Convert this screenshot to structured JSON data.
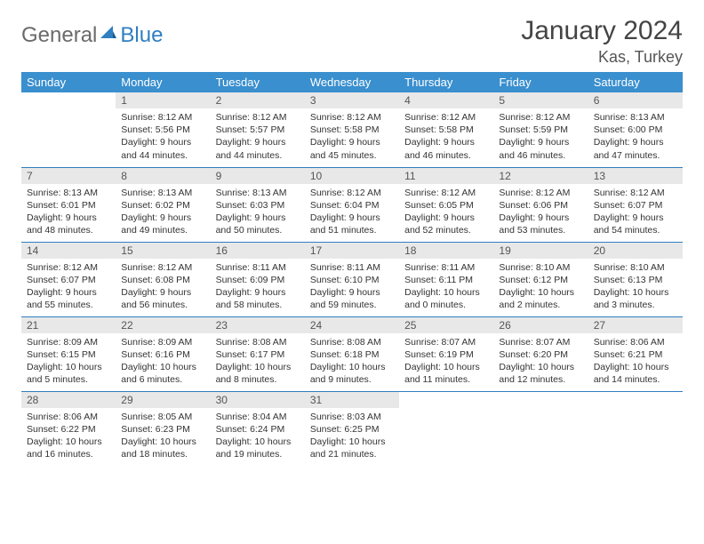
{
  "brand": {
    "part1": "General",
    "part2": "Blue"
  },
  "title": "January 2024",
  "location": "Kas, Turkey",
  "colors": {
    "header_bg": "#3a8fce",
    "row_divider": "#2f7fc2",
    "daynum_bg": "#e8e8e8",
    "logo_gray": "#6a6a6a",
    "logo_blue": "#2f7fc2"
  },
  "weekdays": [
    "Sunday",
    "Monday",
    "Tuesday",
    "Wednesday",
    "Thursday",
    "Friday",
    "Saturday"
  ],
  "weeks": [
    [
      null,
      {
        "n": "1",
        "sr": "8:12 AM",
        "ss": "5:56 PM",
        "dl": "9 hours and 44 minutes."
      },
      {
        "n": "2",
        "sr": "8:12 AM",
        "ss": "5:57 PM",
        "dl": "9 hours and 44 minutes."
      },
      {
        "n": "3",
        "sr": "8:12 AM",
        "ss": "5:58 PM",
        "dl": "9 hours and 45 minutes."
      },
      {
        "n": "4",
        "sr": "8:12 AM",
        "ss": "5:58 PM",
        "dl": "9 hours and 46 minutes."
      },
      {
        "n": "5",
        "sr": "8:12 AM",
        "ss": "5:59 PM",
        "dl": "9 hours and 46 minutes."
      },
      {
        "n": "6",
        "sr": "8:13 AM",
        "ss": "6:00 PM",
        "dl": "9 hours and 47 minutes."
      }
    ],
    [
      {
        "n": "7",
        "sr": "8:13 AM",
        "ss": "6:01 PM",
        "dl": "9 hours and 48 minutes."
      },
      {
        "n": "8",
        "sr": "8:13 AM",
        "ss": "6:02 PM",
        "dl": "9 hours and 49 minutes."
      },
      {
        "n": "9",
        "sr": "8:13 AM",
        "ss": "6:03 PM",
        "dl": "9 hours and 50 minutes."
      },
      {
        "n": "10",
        "sr": "8:12 AM",
        "ss": "6:04 PM",
        "dl": "9 hours and 51 minutes."
      },
      {
        "n": "11",
        "sr": "8:12 AM",
        "ss": "6:05 PM",
        "dl": "9 hours and 52 minutes."
      },
      {
        "n": "12",
        "sr": "8:12 AM",
        "ss": "6:06 PM",
        "dl": "9 hours and 53 minutes."
      },
      {
        "n": "13",
        "sr": "8:12 AM",
        "ss": "6:07 PM",
        "dl": "9 hours and 54 minutes."
      }
    ],
    [
      {
        "n": "14",
        "sr": "8:12 AM",
        "ss": "6:07 PM",
        "dl": "9 hours and 55 minutes."
      },
      {
        "n": "15",
        "sr": "8:12 AM",
        "ss": "6:08 PM",
        "dl": "9 hours and 56 minutes."
      },
      {
        "n": "16",
        "sr": "8:11 AM",
        "ss": "6:09 PM",
        "dl": "9 hours and 58 minutes."
      },
      {
        "n": "17",
        "sr": "8:11 AM",
        "ss": "6:10 PM",
        "dl": "9 hours and 59 minutes."
      },
      {
        "n": "18",
        "sr": "8:11 AM",
        "ss": "6:11 PM",
        "dl": "10 hours and 0 minutes."
      },
      {
        "n": "19",
        "sr": "8:10 AM",
        "ss": "6:12 PM",
        "dl": "10 hours and 2 minutes."
      },
      {
        "n": "20",
        "sr": "8:10 AM",
        "ss": "6:13 PM",
        "dl": "10 hours and 3 minutes."
      }
    ],
    [
      {
        "n": "21",
        "sr": "8:09 AM",
        "ss": "6:15 PM",
        "dl": "10 hours and 5 minutes."
      },
      {
        "n": "22",
        "sr": "8:09 AM",
        "ss": "6:16 PM",
        "dl": "10 hours and 6 minutes."
      },
      {
        "n": "23",
        "sr": "8:08 AM",
        "ss": "6:17 PM",
        "dl": "10 hours and 8 minutes."
      },
      {
        "n": "24",
        "sr": "8:08 AM",
        "ss": "6:18 PM",
        "dl": "10 hours and 9 minutes."
      },
      {
        "n": "25",
        "sr": "8:07 AM",
        "ss": "6:19 PM",
        "dl": "10 hours and 11 minutes."
      },
      {
        "n": "26",
        "sr": "8:07 AM",
        "ss": "6:20 PM",
        "dl": "10 hours and 12 minutes."
      },
      {
        "n": "27",
        "sr": "8:06 AM",
        "ss": "6:21 PM",
        "dl": "10 hours and 14 minutes."
      }
    ],
    [
      {
        "n": "28",
        "sr": "8:06 AM",
        "ss": "6:22 PM",
        "dl": "10 hours and 16 minutes."
      },
      {
        "n": "29",
        "sr": "8:05 AM",
        "ss": "6:23 PM",
        "dl": "10 hours and 18 minutes."
      },
      {
        "n": "30",
        "sr": "8:04 AM",
        "ss": "6:24 PM",
        "dl": "10 hours and 19 minutes."
      },
      {
        "n": "31",
        "sr": "8:03 AM",
        "ss": "6:25 PM",
        "dl": "10 hours and 21 minutes."
      },
      null,
      null,
      null
    ]
  ],
  "labels": {
    "sunrise": "Sunrise: ",
    "sunset": "Sunset: ",
    "daylight": "Daylight: "
  }
}
